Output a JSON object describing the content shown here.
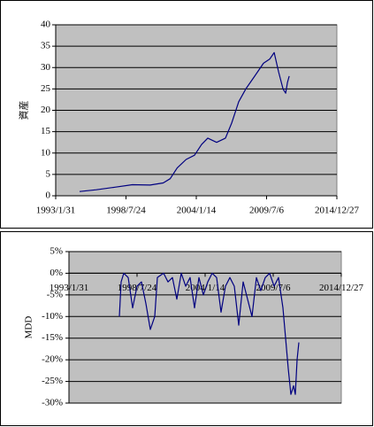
{
  "chart_data": [
    {
      "type": "line",
      "y_label": "資産",
      "color": "#000080",
      "plot_background": "#c0c0c0",
      "grid": true,
      "x": [
        "1994/12/10",
        "1996/4/1",
        "1997/9/12",
        "1999/1/20",
        "2000/6/9",
        "2001/6/17",
        "2002/1/2",
        "2002/7/20",
        "2003/3/31",
        "2003/11/25",
        "2004/6/13",
        "2004/12/6",
        "2005/8/14",
        "2006/4/22",
        "2006/10/17",
        "2007/5/6",
        "2007/11/23",
        "2008/8/2",
        "2009/4/10",
        "2009/10/4",
        "2010/2/7",
        "2010/6/13",
        "2010/10/17",
        "2010/12/31",
        "2011/2/19",
        "2011/4/10"
      ],
      "values": [
        1,
        1.4,
        2,
        2.6,
        2.5,
        3,
        4,
        6.5,
        8.5,
        9.5,
        12,
        13.5,
        12.5,
        13.5,
        17,
        22,
        25,
        28,
        31,
        32,
        33.5,
        29,
        25,
        24,
        26.5,
        28
      ],
      "xlim": [
        "1993/1/31",
        "2014/12/27"
      ],
      "xticks": [
        "1993/1/31",
        "1998/7/24",
        "2004/1/14",
        "2009/7/6",
        "2014/12/27"
      ],
      "ylim": [
        0,
        40
      ],
      "yticks": [
        0,
        5,
        10,
        15,
        20,
        25,
        30,
        35,
        40
      ]
    },
    {
      "type": "line",
      "y_label": "MDD",
      "color": "#000080",
      "plot_background": "#c0c0c0",
      "grid": true,
      "x": [
        "1997/2/20",
        "1997/4/12",
        "1997/6/29",
        "1997/11/6",
        "1998/3/16",
        "1998/7/24",
        "1998/12/1",
        "1999/4/9",
        "1999/8/17",
        "1999/12/25",
        "2000/3/12",
        "2000/9/10",
        "2001/1/18",
        "2001/5/27",
        "2001/10/4",
        "2002/2/11",
        "2002/6/21",
        "2002/10/29",
        "2003/3/8",
        "2003/7/16",
        "2003/11/22",
        "2004/3/31",
        "2004/8/8",
        "2004/12/16",
        "2005/4/25",
        "2005/9/2",
        "2006/1/10",
        "2006/5/19",
        "2006/9/26",
        "2007/2/3",
        "2007/6/13",
        "2007/10/21",
        "2008/2/28",
        "2008/7/6",
        "2008/11/13",
        "2009/3/23",
        "2009/7/31",
        "2009/12/8",
        "2010/4/17",
        "2010/7/4",
        "2010/9/20",
        "2010/12/7",
        "2011/2/23",
        "2011/4/16",
        "2011/6/7",
        "2011/7/29"
      ],
      "values": [
        -10,
        -2,
        0,
        -1,
        -8,
        -3,
        -2,
        -7,
        -13,
        -10,
        -1,
        0,
        -2,
        -1,
        -6,
        0,
        -3,
        -1,
        -8,
        -1,
        -5,
        -2,
        0,
        -1,
        -9,
        -3,
        -1,
        -3,
        -12,
        -2,
        -6,
        -10,
        -1,
        -4,
        -1,
        0,
        -3,
        -1,
        -8,
        -15,
        -22,
        -28,
        -26,
        -28,
        -20,
        -16
      ],
      "xlim": [
        "1993/1/31",
        "2014/12/27"
      ],
      "xticks": [
        "1993/1/31",
        "1998/7/24",
        "2004/1/14",
        "2009/7/6",
        "2014/12/27"
      ],
      "ylim": [
        -30,
        5
      ],
      "yticks": [
        {
          "value": 5,
          "label": "5%"
        },
        {
          "value": 0,
          "label": "0%"
        },
        {
          "value": -5,
          "label": "-5%"
        },
        {
          "value": -10,
          "label": "-10%"
        },
        {
          "value": -15,
          "label": "-15%"
        },
        {
          "value": -20,
          "label": "-20%"
        },
        {
          "value": -25,
          "label": "-25%"
        },
        {
          "value": -30,
          "label": "-30%"
        }
      ]
    }
  ]
}
